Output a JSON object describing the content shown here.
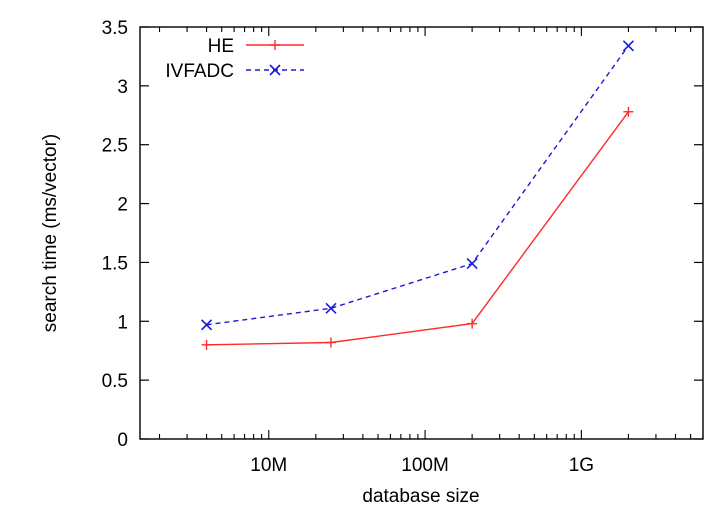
{
  "chart_data": {
    "type": "line",
    "xlabel": "database size",
    "ylabel": "search time (ms/vector)",
    "x_scale": "log",
    "xlim": [
      1500000,
      6000000000
    ],
    "ylim": [
      0,
      3.5
    ],
    "x_ticks": [
      {
        "value": 10000000,
        "label": "10M"
      },
      {
        "value": 100000000,
        "label": "100M"
      },
      {
        "value": 1000000000,
        "label": "1G"
      }
    ],
    "y_ticks": [
      {
        "value": 0,
        "label": "0"
      },
      {
        "value": 0.5,
        "label": "0.5"
      },
      {
        "value": 1,
        "label": "1"
      },
      {
        "value": 1.5,
        "label": "1.5"
      },
      {
        "value": 2,
        "label": "2"
      },
      {
        "value": 2.5,
        "label": "2.5"
      },
      {
        "value": 3,
        "label": "3"
      },
      {
        "value": 3.5,
        "label": "3.5"
      }
    ],
    "x": [
      4000000,
      25000000,
      200000000,
      2000000000
    ],
    "series": [
      {
        "name": "HE",
        "values": [
          0.8,
          0.82,
          0.98,
          2.78
        ],
        "color": "#ff2a2a",
        "dash": "solid",
        "marker": "plus"
      },
      {
        "name": "IVFADC",
        "values": [
          0.97,
          1.11,
          1.49,
          3.34
        ],
        "color": "#1a1ad6",
        "dash": "dashed",
        "marker": "cross"
      }
    ],
    "legend_position": "top-left",
    "grid": false
  }
}
